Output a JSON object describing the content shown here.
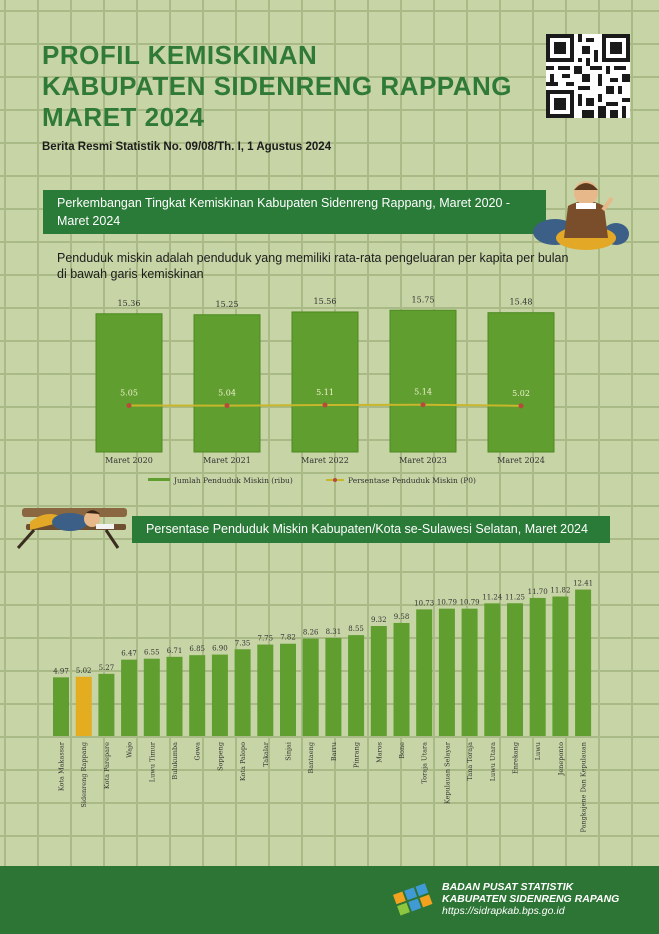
{
  "header": {
    "title_lines": [
      "PROFIL KEMISKINAN",
      "KABUPATEN SIDENRENG RAPPANG",
      "MARET 2024"
    ],
    "subtitle": "Berita Resmi Statistik No. 09/08/Th. I, 1 Agustus 2024"
  },
  "section1": {
    "banner_title": "Perkembangan Tingkat Kemiskinan Kabupaten Sidenreng Rappang, Maret 2020 - Maret 2024",
    "description": "Penduduk miskin adalah penduduk yang memiliki rata-rata pengeluaran per kapita per bulan di bawah garis kemiskinan"
  },
  "section2": {
    "banner_title": "Persentase Penduduk Miskin Kabupaten/Kota se-Sulawesi Selatan, Maret 2024"
  },
  "footer": {
    "org_line1": "BADAN PUSAT STATISTIK",
    "org_line2": "KABUPATEN SIDENRENG RAPANG",
    "url": "https://sidrapkab.bps.go.id"
  },
  "colors": {
    "bar_green": "#5f9e2f",
    "bar_highlight": "#e3ad1f",
    "line_yellow": "#c8b62b",
    "point_red": "#b84a3a",
    "banner_green": "#2a7a38"
  },
  "chart_data": [
    {
      "type": "bar",
      "categories": [
        "Maret 2020",
        "Maret 2021",
        "Maret 2022",
        "Maret 2023",
        "Maret 2024"
      ],
      "series": [
        {
          "name": "Jumlah Penduduk Miskin (ribu)",
          "type": "bar",
          "values": [
            15.36,
            15.25,
            15.56,
            15.75,
            15.48
          ]
        },
        {
          "name": "Persentase Penduduk Miskin (P0)",
          "type": "line",
          "values": [
            5.05,
            5.04,
            5.11,
            5.14,
            5.02
          ]
        }
      ],
      "labels": {
        "bars": [
          "15.36",
          "15.25",
          "15.56",
          "15.75",
          "15.48"
        ],
        "points": [
          "5.05",
          "5.04",
          "5.11",
          "5.14",
          "5.02"
        ]
      },
      "legend_placement": "bottom"
    },
    {
      "type": "bar",
      "categories": [
        "Kota Makassar",
        "Sidenreng Rappang",
        "Kota Parepare",
        "Wajo",
        "Luwu Timur",
        "Bulukumba",
        "Gowa",
        "Soppeng",
        "Kota Palopo",
        "Takalar",
        "Sinjai",
        "Bantaeng",
        "Barru",
        "Pinrang",
        "Maros",
        "Bone",
        "Toraja Utara",
        "Kepulauan Selayar",
        "Tana Toraja",
        "Luwu Utara",
        "Enrekang",
        "Luwu",
        "Jeneponto",
        "Pangkajene Dan Kepulauan"
      ],
      "values": [
        4.97,
        5.02,
        5.27,
        6.47,
        6.55,
        6.71,
        6.85,
        6.9,
        7.35,
        7.75,
        7.82,
        8.26,
        8.31,
        8.55,
        9.32,
        9.58,
        10.73,
        10.79,
        10.79,
        11.24,
        11.25,
        11.7,
        11.82,
        12.41
      ],
      "value_labels": [
        "4.97",
        "5.02",
        "5.27",
        "6.47",
        "6.55",
        "6.71",
        "6.85",
        "6.90",
        "7.35",
        "7.75",
        "7.82",
        "8.26",
        "8.31",
        "8.55",
        "9.32",
        "9.58",
        "10.73",
        "10.79",
        "10.79",
        "11.24",
        "11.25",
        "11.70",
        "11.82",
        "12.41"
      ],
      "highlight": "Sidenreng Rappang"
    }
  ]
}
